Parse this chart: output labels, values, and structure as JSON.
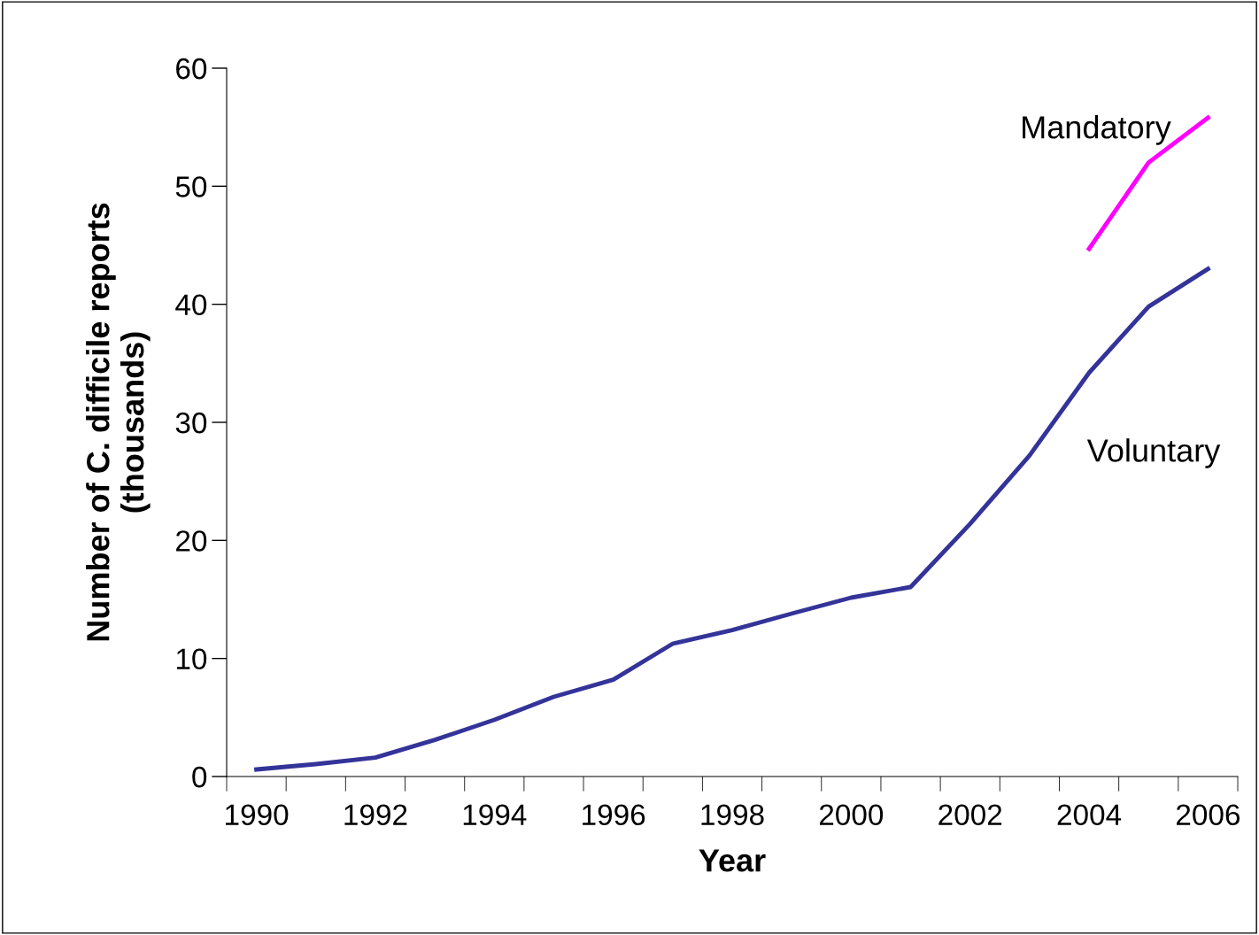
{
  "chart_data": {
    "type": "line",
    "xlabel": "Year",
    "ylabel": "Number of C. difficile reports\n(thousands)",
    "categories": [
      "1990",
      null,
      "1992",
      null,
      "1994",
      null,
      "1996",
      null,
      "1998",
      null,
      "2000",
      null,
      "2002",
      null,
      "2004",
      null,
      "2006"
    ],
    "series": [
      {
        "name": "Voluntary",
        "color": "#333399",
        "values": [
          0.6,
          1.05,
          1.6,
          3.1,
          4.8,
          6.75,
          8.2,
          11.25,
          12.4,
          13.8,
          15.15,
          16.05,
          21.4,
          27.2,
          34.2,
          39.8,
          43.0
        ]
      },
      {
        "name": "Mandatory",
        "color": "#ff00ff",
        "values": [
          null,
          null,
          null,
          null,
          null,
          null,
          null,
          null,
          null,
          null,
          null,
          null,
          null,
          null,
          44.7,
          52.0,
          55.8
        ]
      }
    ],
    "ylim": [
      0,
      60
    ],
    "yticks": [
      0,
      10,
      20,
      30,
      40,
      50,
      60
    ],
    "grid": false,
    "legend": false,
    "marker": "none",
    "line_style": "solid"
  }
}
